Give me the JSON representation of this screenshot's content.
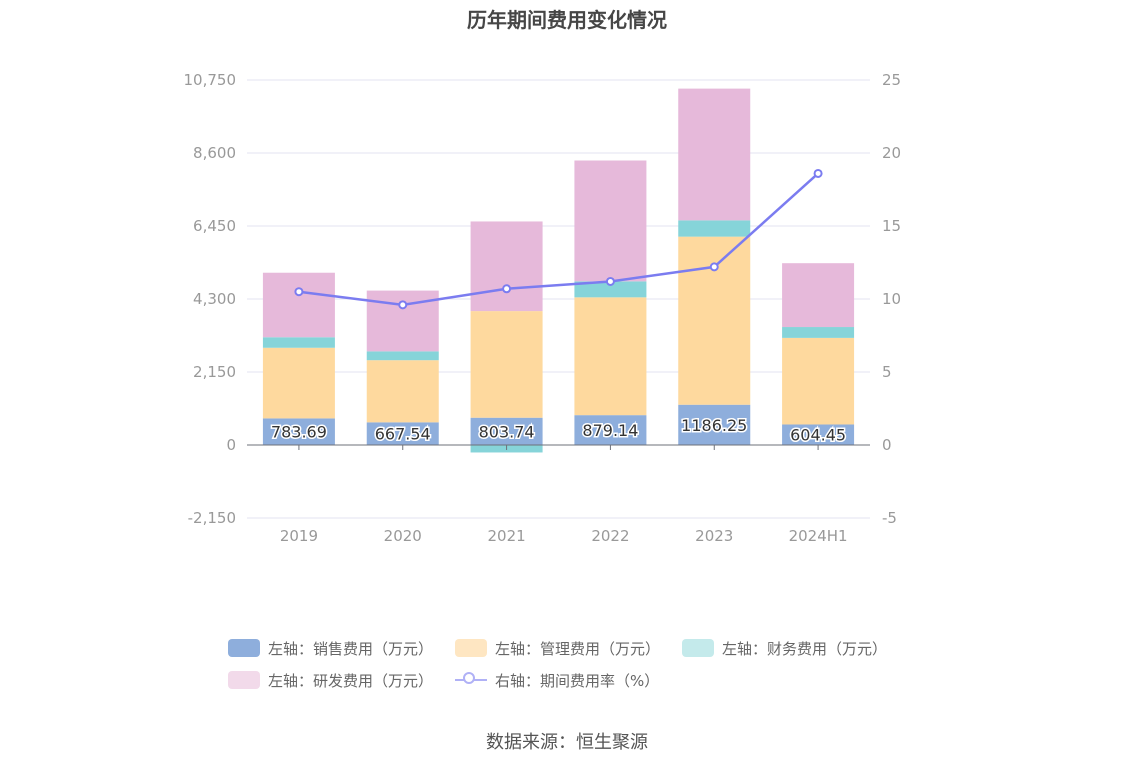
{
  "title": "历年期间费用变化情况",
  "source": "数据来源：恒生聚源",
  "colors": {
    "sales": "#8eaedc",
    "admin": "#fed99e",
    "finance": "#86d4d9",
    "rd": "#e6b9da",
    "rate": "#7b7cf0",
    "grid": "#e3e3f0",
    "axis_text": "#999999"
  },
  "legend": [
    {
      "key": "sales",
      "label": "左轴：销售费用（万元）",
      "kind": "bar",
      "color": "#8eaedc"
    },
    {
      "key": "admin",
      "label": "左轴：管理费用（万元）",
      "kind": "bar",
      "color": "#fee6c2"
    },
    {
      "key": "finance",
      "label": "左轴：财务费用（万元）",
      "kind": "bar",
      "color": "#c4eaeb"
    },
    {
      "key": "rd",
      "label": "左轴：研发费用（万元）",
      "kind": "bar",
      "color": "#f2daea"
    },
    {
      "key": "rate",
      "label": "右轴：期间费用率（%）",
      "kind": "line",
      "color": "#b0b1f6"
    }
  ],
  "chart_data": {
    "type": "bar",
    "stacked": true,
    "title": "历年期间费用变化情况",
    "categories": [
      "2019",
      "2020",
      "2021",
      "2022",
      "2023",
      "2024H1"
    ],
    "left_axis": {
      "ticks": [
        10750,
        8600,
        6450,
        4300,
        2150,
        0,
        -2150
      ],
      "tick_labels": [
        "10,750",
        "8,600",
        "6,450",
        "4,300",
        "2,150",
        "0",
        "-2,150"
      ],
      "ylim": [
        -2150,
        10750
      ]
    },
    "right_axis": {
      "ticks": [
        25,
        20,
        15,
        10,
        5,
        0,
        -5
      ],
      "tick_labels": [
        "25",
        "20",
        "15",
        "10",
        "5",
        "0",
        "-5"
      ],
      "ylim": [
        -5,
        25
      ]
    },
    "series": [
      {
        "name": "左轴：销售费用（万元）",
        "key": "sales",
        "axis": "left",
        "type": "bar",
        "values": [
          783.69,
          667.54,
          803.74,
          879.14,
          1186.25,
          604.45
        ],
        "labels": [
          "783.69",
          "667.54",
          "803.74",
          "879.14",
          "1186.25",
          "604.45"
        ]
      },
      {
        "name": "左轴：管理费用（万元）",
        "key": "admin",
        "axis": "left",
        "type": "bar",
        "values": [
          2080,
          1830,
          3140,
          3470,
          4950,
          2550
        ]
      },
      {
        "name": "左轴：财务费用（万元）",
        "key": "finance",
        "axis": "left",
        "type": "bar",
        "values": [
          310,
          260,
          -220,
          470,
          480,
          320
        ]
      },
      {
        "name": "左轴：研发费用（万元）",
        "key": "rd",
        "axis": "left",
        "type": "bar",
        "values": [
          1900,
          1790,
          2640,
          3560,
          3880,
          1880
        ]
      },
      {
        "name": "右轴：期间费用率（%）",
        "key": "rate",
        "axis": "right",
        "type": "line",
        "values": [
          10.5,
          9.6,
          10.7,
          11.2,
          12.2,
          18.6
        ]
      }
    ],
    "legend_position": "bottom",
    "grid": true
  }
}
